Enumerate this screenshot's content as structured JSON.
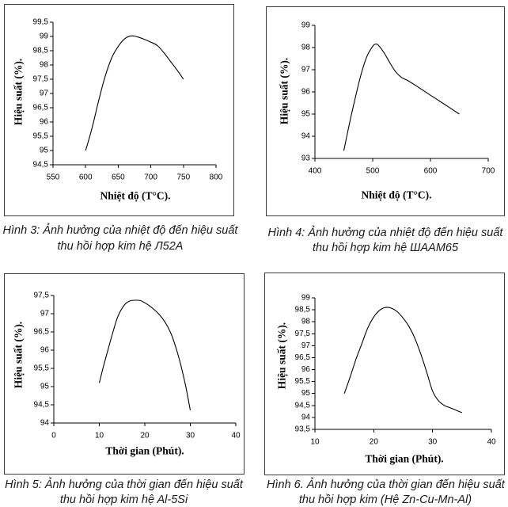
{
  "chart_data": [
    {
      "type": "line",
      "xlabel": "Nhiệt độ (T°C).",
      "ylabel": "Hiệu suất (%).",
      "xlim": [
        550,
        800
      ],
      "ylim": [
        94.5,
        99.5
      ],
      "x_ticks": [
        "550",
        "600",
        "650",
        "700",
        "750",
        "800"
      ],
      "y_ticks": [
        "94,5",
        "95",
        "95,5",
        "96",
        "96,5",
        "97",
        "97,5",
        "98",
        "98,5",
        "99",
        "99,5"
      ],
      "grid": false,
      "show_legend": false,
      "line_color": "#000000",
      "series": [
        {
          "x": [
            600,
            610,
            620,
            630,
            640,
            650,
            660,
            670,
            680,
            690,
            700,
            710,
            720,
            730,
            740,
            750
          ],
          "y": [
            95.0,
            95.8,
            96.75,
            97.6,
            98.25,
            98.65,
            98.92,
            99.02,
            98.98,
            98.9,
            98.8,
            98.68,
            98.43,
            98.13,
            97.83,
            97.5
          ]
        }
      ]
    },
    {
      "type": "line",
      "xlabel": "Nhiệt độ (T°C).",
      "ylabel": "Hiệu suất (%).",
      "xlim": [
        400,
        700
      ],
      "ylim": [
        93,
        99
      ],
      "x_ticks": [
        "400",
        "500",
        "600",
        "700"
      ],
      "y_ticks": [
        "93",
        "94",
        "95",
        "96",
        "97",
        "98",
        "99"
      ],
      "grid": false,
      "show_legend": false,
      "line_color": "#000000",
      "series": [
        {
          "x": [
            450,
            460,
            470,
            480,
            490,
            500,
            505,
            510,
            520,
            530,
            540,
            550,
            560,
            575,
            600,
            625,
            650
          ],
          "y": [
            93.35,
            94.6,
            95.75,
            96.8,
            97.6,
            98.05,
            98.15,
            98.1,
            97.75,
            97.3,
            96.9,
            96.65,
            96.52,
            96.28,
            95.85,
            95.43,
            95.0
          ]
        }
      ]
    },
    {
      "type": "line",
      "xlabel": "Thời gian (Phút).",
      "ylabel": "Hiệu suất (%).",
      "xlim": [
        0,
        40
      ],
      "ylim": [
        94,
        97.5
      ],
      "x_ticks": [
        "0",
        "10",
        "20",
        "30",
        "40"
      ],
      "y_ticks": [
        "94",
        "94,5",
        "95",
        "95,5",
        "96",
        "96,5",
        "97",
        "97,5"
      ],
      "grid": false,
      "show_legend": false,
      "line_color": "#000000",
      "series": [
        {
          "x": [
            10,
            11,
            12,
            13,
            14,
            15,
            16,
            17,
            18,
            19,
            20,
            21,
            22,
            23,
            24,
            25,
            26,
            27,
            28,
            29,
            30
          ],
          "y": [
            95.1,
            95.6,
            96.05,
            96.5,
            96.9,
            97.15,
            97.3,
            97.36,
            97.37,
            97.36,
            97.3,
            97.22,
            97.12,
            97.0,
            96.85,
            96.65,
            96.38,
            96.0,
            95.55,
            95.0,
            94.35
          ]
        }
      ]
    },
    {
      "type": "line",
      "xlabel": "Thời gian (Phút).",
      "ylabel": "Hiệu suất (%).",
      "xlim": [
        10,
        40
      ],
      "ylim": [
        93.5,
        99
      ],
      "x_ticks": [
        "10",
        "20",
        "30",
        "40"
      ],
      "y_ticks": [
        "93,5",
        "94",
        "94,5",
        "95",
        "95,5",
        "96",
        "96,5",
        "97",
        "97,5",
        "98",
        "98,5",
        "99"
      ],
      "grid": false,
      "show_legend": false,
      "line_color": "#000000",
      "series": [
        {
          "x": [
            15,
            16,
            17,
            18,
            19,
            20,
            21,
            22,
            23,
            24,
            25,
            26,
            27,
            28,
            29,
            30,
            31,
            32,
            33,
            34,
            35
          ],
          "y": [
            95.0,
            95.7,
            96.45,
            97.1,
            97.75,
            98.2,
            98.48,
            98.6,
            98.57,
            98.42,
            98.15,
            97.8,
            97.3,
            96.65,
            95.9,
            95.1,
            94.7,
            94.5,
            94.4,
            94.3,
            94.2
          ]
        }
      ]
    }
  ],
  "figures": [
    {
      "caption_line1": "Hình 3: Ảnh hưởng của nhiệt độ đến hiệu suất",
      "caption_line2": "thu hồi hợp kim hệ Л52A"
    },
    {
      "caption_line1": "Hình 4: Ảnh hưởng của nhiệt độ đến hiệu suất",
      "caption_line2": "thu hồi hợp kim hệ ШAAM65"
    },
    {
      "caption_line1": "Hình 5: Ảnh hưởng của thời gian đến hiệu suất",
      "caption_line2": "thu hồi hợp kim hệ Al-5Si"
    },
    {
      "caption_line1": "Hình 6. Ảnh hưởng của thời gian đến hiệu suất",
      "caption_line2": "thu hồi hợp kim (Hệ Zn-Cu-Mn-Al)"
    }
  ]
}
